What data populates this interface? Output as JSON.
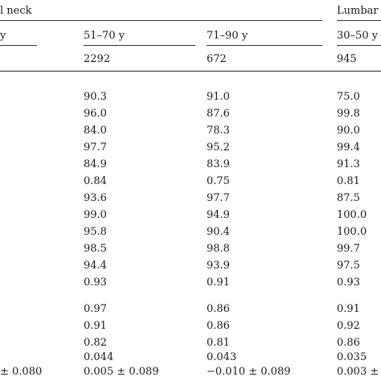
{
  "header": {
    "group_left_fragment": "l neck",
    "group_right": "Lumbar",
    "col_fragment_left": "y",
    "col_51_70": "51–70 y",
    "col_71_90": "71–90 y",
    "col_30_50": "30–50 y"
  },
  "counts": {
    "c51_70": "2292",
    "c71_90": "672",
    "c30_50": "945"
  },
  "rows": [
    {
      "a": "90.3",
      "b": "91.0",
      "c": "75.0"
    },
    {
      "a": "96.0",
      "b": "87.6",
      "c": "99.8"
    },
    {
      "a": "84.0",
      "b": "78.3",
      "c": "90.0"
    },
    {
      "a": "97.7",
      "b": "95.2",
      "c": "99.4"
    },
    {
      "a": "84.9",
      "b": "83.9",
      "c": "91.3"
    },
    {
      "a": "0.84",
      "b": "0.75",
      "c": "0.81"
    },
    {
      "a": "93.6",
      "b": "97.7",
      "c": "87.5"
    },
    {
      "a": "99.0",
      "b": "94.9",
      "c": "100.0"
    },
    {
      "a": "95.8",
      "b": "90.4",
      "c": "100.0"
    },
    {
      "a": "98.5",
      "b": "98.8",
      "c": "99.7"
    },
    {
      "a": "94.4",
      "b": "93.9",
      "c": "97.5"
    },
    {
      "a": "0.93",
      "b": "0.91",
      "c": "0.93"
    }
  ],
  "rows2": [
    {
      "a": "0.97",
      "b": "0.86",
      "c": "0.91"
    },
    {
      "a": "0.91",
      "b": "0.86",
      "c": "0.92"
    },
    {
      "a": "0.82",
      "b": "0.81",
      "c": "0.86"
    },
    {
      "a": "0.044",
      "b": "0.043",
      "c": "0.035"
    }
  ],
  "last_row": {
    "left_fragment": "± 0.080",
    "a": "0.005 ± 0.089",
    "b": "−0.010 ± 0.089",
    "c": "0.003 ±"
  }
}
